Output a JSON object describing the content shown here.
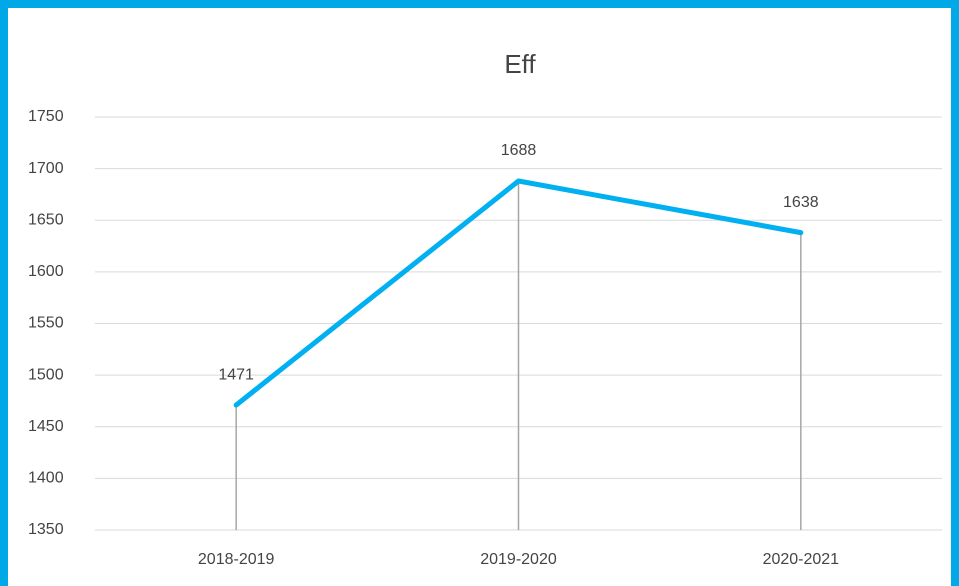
{
  "chart_data": {
    "type": "line",
    "title": "Eff",
    "categories": [
      "2018-2019",
      "2019-2020",
      "2020-2021"
    ],
    "series": [
      {
        "name": "Eff",
        "color": "#00b0f0",
        "values": [
          1471,
          1688,
          1638
        ]
      }
    ],
    "ylim": [
      1350,
      1750
    ],
    "yticks": [
      1350,
      1400,
      1450,
      1500,
      1550,
      1600,
      1650,
      1700,
      1750
    ],
    "grid": true,
    "drop_lines": true
  }
}
